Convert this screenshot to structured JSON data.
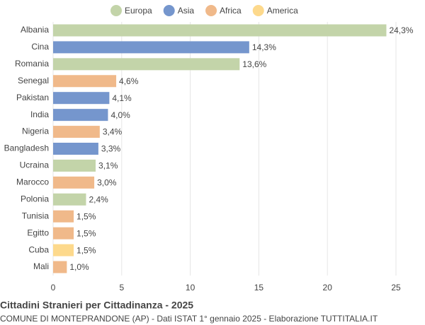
{
  "chart_data": {
    "type": "bar",
    "orientation": "horizontal",
    "title": "Cittadini Stranieri per Cittadinanza - 2025",
    "subtitle": "COMUNE DI MONTEPRANDONE (AP) - Dati ISTAT 1° gennaio 2025 - Elaborazione TUTTITALIA.IT",
    "categories": [
      "Albania",
      "Cina",
      "Romania",
      "Senegal",
      "Pakistan",
      "India",
      "Nigeria",
      "Bangladesh",
      "Ucraina",
      "Marocco",
      "Polonia",
      "Tunisia",
      "Egitto",
      "Cuba",
      "Mali"
    ],
    "series": [
      {
        "name": "Europa",
        "color": "#c3d4a9",
        "values": [
          24.3,
          null,
          13.6,
          null,
          null,
          null,
          null,
          null,
          3.1,
          null,
          2.4,
          null,
          null,
          null,
          null
        ],
        "value_labels": [
          "24,3%",
          null,
          "13,6%",
          null,
          null,
          null,
          null,
          null,
          "3,1%",
          null,
          "2,4%",
          null,
          null,
          null,
          null
        ]
      },
      {
        "name": "Asia",
        "color": "#7596cd",
        "values": [
          null,
          14.3,
          null,
          null,
          4.1,
          4.0,
          null,
          3.3,
          null,
          null,
          null,
          null,
          null,
          null,
          null
        ],
        "value_labels": [
          null,
          "14,3%",
          null,
          null,
          "4,1%",
          "4,0%",
          null,
          "3,3%",
          null,
          null,
          null,
          null,
          null,
          null,
          null
        ]
      },
      {
        "name": "Africa",
        "color": "#f0b98a",
        "values": [
          null,
          null,
          null,
          4.6,
          null,
          null,
          3.4,
          null,
          null,
          3.0,
          null,
          1.5,
          1.5,
          null,
          1.0
        ],
        "value_labels": [
          null,
          null,
          null,
          "4,6%",
          null,
          null,
          "3,4%",
          null,
          null,
          "3,0%",
          null,
          "1,5%",
          "1,5%",
          null,
          "1,0%"
        ]
      },
      {
        "name": "America",
        "color": "#fdd98c",
        "values": [
          null,
          null,
          null,
          null,
          null,
          null,
          null,
          null,
          null,
          null,
          null,
          null,
          null,
          "1.5",
          null
        ],
        "value_labels": [
          null,
          null,
          null,
          null,
          null,
          null,
          null,
          null,
          null,
          null,
          null,
          null,
          null,
          "1,5%",
          null
        ]
      }
    ],
    "xlim": [
      0,
      25
    ],
    "xticks": [
      0,
      5,
      10,
      15,
      20,
      25
    ],
    "grid": true,
    "legend": "top"
  }
}
